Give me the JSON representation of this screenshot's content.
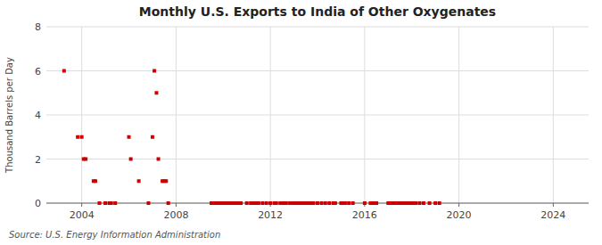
{
  "chart_data": {
    "type": "scatter",
    "title": "Monthly U.S. Exports to India of Other Oxygenates",
    "y_label": "Thousand Barrels per Day",
    "annotations": [
      "Source: U.S. Energy Information Administration"
    ],
    "color": "#cc0000",
    "marker": "square",
    "grid": true,
    "xlim": [
      2002.5,
      2025.5
    ],
    "xticks": [
      2004,
      2008,
      2012,
      2016,
      2020,
      2024
    ],
    "ylim": [
      0,
      8
    ],
    "yticks": [
      0,
      2,
      4,
      6,
      8
    ],
    "x": [
      2003.25,
      2003.83,
      2004.0,
      2004.08,
      2004.17,
      2004.5,
      2004.58,
      2004.75,
      2005.0,
      2005.17,
      2005.25,
      2005.42,
      2006.0,
      2006.08,
      2006.42,
      2006.83,
      2007.0,
      2007.08,
      2007.17,
      2007.25,
      2007.42,
      2007.5,
      2007.58,
      2007.67,
      2009.5,
      2009.58,
      2009.67,
      2009.75,
      2009.83,
      2009.92,
      2010.0,
      2010.08,
      2010.17,
      2010.25,
      2010.33,
      2010.42,
      2010.5,
      2010.58,
      2010.67,
      2010.75,
      2011.0,
      2011.17,
      2011.25,
      2011.33,
      2011.42,
      2011.5,
      2011.67,
      2011.83,
      2012.0,
      2012.17,
      2012.25,
      2012.42,
      2012.5,
      2012.58,
      2012.67,
      2012.83,
      2012.92,
      2013.0,
      2013.08,
      2013.17,
      2013.25,
      2013.33,
      2013.42,
      2013.5,
      2013.58,
      2013.67,
      2013.75,
      2013.83,
      2014.0,
      2014.17,
      2014.33,
      2014.5,
      2014.67,
      2014.75,
      2015.0,
      2015.08,
      2015.17,
      2015.33,
      2015.5,
      2016.0,
      2016.25,
      2016.33,
      2016.42,
      2016.5,
      2017.0,
      2017.08,
      2017.17,
      2017.25,
      2017.33,
      2017.42,
      2017.5,
      2017.58,
      2017.67,
      2017.75,
      2017.83,
      2017.92,
      2018.0,
      2018.08,
      2018.17,
      2018.33,
      2018.5,
      2018.75,
      2019.0,
      2019.17
    ],
    "values": [
      6.0,
      3.0,
      3.0,
      2.0,
      2.0,
      1.0,
      1.0,
      0.0,
      0.0,
      0.0,
      0.0,
      0.0,
      3.0,
      2.0,
      1.0,
      0.0,
      3.0,
      6.0,
      5.0,
      2.0,
      1.0,
      1.0,
      1.0,
      0.0,
      0.0,
      0.0,
      0.0,
      0.0,
      0.0,
      0.0,
      0.0,
      0.0,
      0.0,
      0.0,
      0.0,
      0.0,
      0.0,
      0.0,
      0.0,
      0.0,
      0.0,
      0.0,
      0.0,
      0.0,
      0.0,
      0.0,
      0.0,
      0.0,
      0.0,
      0.0,
      0.0,
      0.0,
      0.0,
      0.0,
      0.0,
      0.0,
      0.0,
      0.0,
      0.0,
      0.0,
      0.0,
      0.0,
      0.0,
      0.0,
      0.0,
      0.0,
      0.0,
      0.0,
      0.0,
      0.0,
      0.0,
      0.0,
      0.0,
      0.0,
      0.0,
      0.0,
      0.0,
      0.0,
      0.0,
      0.0,
      0.0,
      0.0,
      0.0,
      0.0,
      0.0,
      0.0,
      0.0,
      0.0,
      0.0,
      0.0,
      0.0,
      0.0,
      0.0,
      0.0,
      0.0,
      0.0,
      0.0,
      0.0,
      0.0,
      0.0,
      0.0,
      0.0,
      0.0,
      0.0
    ]
  }
}
